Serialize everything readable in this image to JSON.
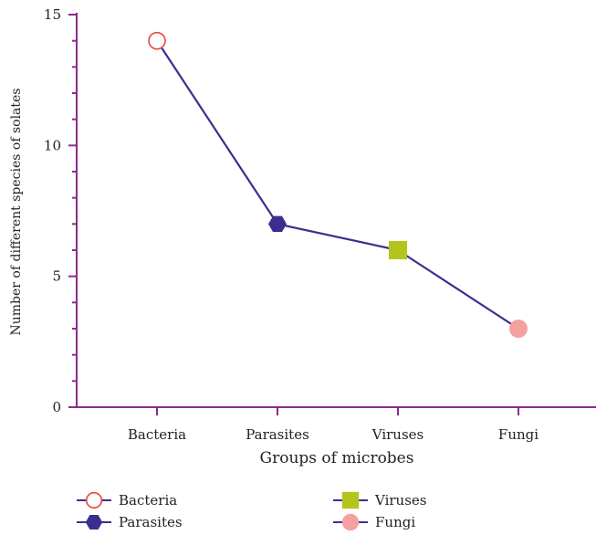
{
  "chart_data": {
    "type": "line",
    "categories": [
      "Bacteria",
      "Parasites",
      "Viruses",
      "Fungi"
    ],
    "values": [
      14,
      7,
      6,
      3
    ],
    "xlabel": "Groups of microbes",
    "ylabel": "Number of different species of solates",
    "ylim": [
      0,
      15
    ],
    "yticks": [
      0,
      5,
      10,
      15
    ],
    "grid": false,
    "legend_position": "bottom",
    "series": [
      {
        "name": "Bacteria",
        "value": 14,
        "marker": "open-circle",
        "color": "#e8473e"
      },
      {
        "name": "Parasites",
        "value": 7,
        "marker": "hexagon",
        "color": "#3a2f8f"
      },
      {
        "name": "Viruses",
        "value": 6,
        "marker": "square",
        "color": "#b5c31d"
      },
      {
        "name": "Fungi",
        "value": 3,
        "marker": "filled-circle",
        "color": "#f4a0a0"
      }
    ],
    "colors": {
      "axis": "#8a2b8f",
      "line": "#3a2f8f"
    }
  }
}
